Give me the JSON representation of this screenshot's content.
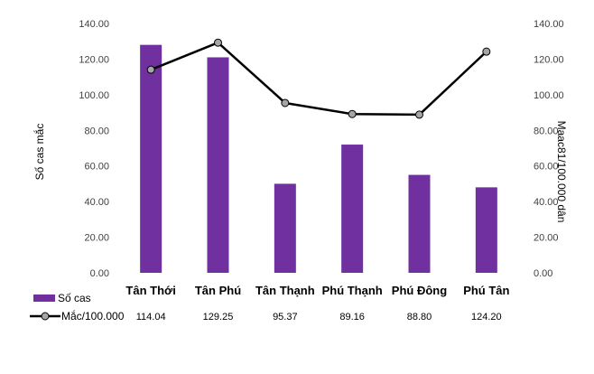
{
  "chart_data": {
    "type": "bar",
    "categories": [
      "Tân Thới",
      "Tân Phú",
      "Tân Thạnh",
      "Phú Thạnh",
      "Phú Đông",
      "Phú Tân"
    ],
    "series": [
      {
        "name": "Số cas",
        "type": "bar",
        "axis": "left",
        "color": "#7030A0",
        "values": [
          128,
          121,
          50,
          72,
          55,
          48
        ]
      },
      {
        "name": "Mắc/100.000",
        "type": "line",
        "axis": "right",
        "color": "#000000",
        "marker_color": "#A6A6A6",
        "values": [
          114.04,
          129.25,
          95.37,
          89.16,
          88.8,
          124.2
        ]
      }
    ],
    "left_axis": {
      "label": "Số cas mắc",
      "ylim": [
        0,
        140
      ],
      "ticks": [
        "0.00",
        "20.00",
        "40.00",
        "60.00",
        "80.00",
        "100.00",
        "120.00",
        "140.00"
      ]
    },
    "right_axis": {
      "label": "Maac81/100.000 dân",
      "ylim": [
        0,
        140
      ],
      "ticks": [
        "0.00",
        "20.00",
        "40.00",
        "60.00",
        "80.00",
        "100.00",
        "120.00",
        "140.00"
      ]
    },
    "data_table_values": [
      "114.04",
      "129.25",
      "95.37",
      "89.16",
      "88.80",
      "124.20"
    ],
    "legend": [
      "Số cas",
      "Mắc/100.000"
    ],
    "legend_placement": "bottom-left",
    "grid": false
  }
}
